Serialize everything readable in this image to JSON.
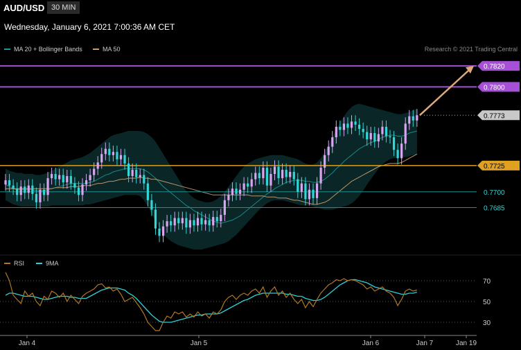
{
  "header": {
    "symbol": "AUD/USD",
    "timeframe": "30 MIN",
    "datetime": "Wednesday, January 6, 2021 7:00:36 AM CET",
    "credit": "Research © 2021 Trading Central"
  },
  "legend": {
    "main": [
      {
        "label": "MA 20 + Bollinger Bands",
        "color": "#1a9a9a"
      },
      {
        "label": "MA 50",
        "color": "#c8a070"
      }
    ],
    "rsi": [
      {
        "label": "RSI",
        "color": "#b07828"
      },
      {
        "label": "9MA",
        "color": "#2ed0d8"
      }
    ]
  },
  "colors": {
    "bull": "#d8a6f0",
    "bear": "#33d6d6",
    "resistance": "#a650d8",
    "support": "#1f8f8f",
    "pivot": "#e0a020",
    "arrow": "#e0a878",
    "band_fill": "#0a2626",
    "current_tag": "#c8c8c8"
  },
  "chart_data": [
    {
      "type": "candlestick",
      "ylim": [
        0.7645,
        0.783
      ],
      "x_ticks": [
        "Jan 4",
        "Jan 5",
        "Jan 6",
        "Jan 7",
        "Jan 19"
      ],
      "levels": [
        {
          "value": 0.782,
          "label": "0.7820",
          "kind": "resistance"
        },
        {
          "value": 0.78,
          "label": "0.7800",
          "kind": "resistance"
        },
        {
          "value": 0.7773,
          "label": "0.7773",
          "kind": "current"
        },
        {
          "value": 0.7725,
          "label": "0.7725",
          "kind": "pivot"
        },
        {
          "value": 0.77,
          "label": "0.7700",
          "kind": "support"
        },
        {
          "value": 0.7685,
          "label": "0.7685",
          "kind": "support"
        }
      ],
      "target_arrow": {
        "from": 0.7773,
        "to": 0.782
      },
      "candles": [
        [
          0.7707,
          0.7711
        ],
        [
          0.7711,
          0.7706
        ],
        [
          0.7706,
          0.7703
        ],
        [
          0.7703,
          0.7697
        ],
        [
          0.7697,
          0.7705
        ],
        [
          0.7705,
          0.7699
        ],
        [
          0.7699,
          0.7706
        ],
        [
          0.7706,
          0.7698
        ],
        [
          0.7698,
          0.769
        ],
        [
          0.769,
          0.7702
        ],
        [
          0.7702,
          0.7697
        ],
        [
          0.7697,
          0.7713
        ],
        [
          0.7713,
          0.7717
        ],
        [
          0.7717,
          0.7712
        ],
        [
          0.7712,
          0.7716
        ],
        [
          0.7716,
          0.7709
        ],
        [
          0.7709,
          0.7715
        ],
        [
          0.7715,
          0.7708
        ],
        [
          0.7708,
          0.7704
        ],
        [
          0.7704,
          0.7697
        ],
        [
          0.7697,
          0.7707
        ],
        [
          0.7707,
          0.7711
        ],
        [
          0.7711,
          0.7716
        ],
        [
          0.7716,
          0.7722
        ],
        [
          0.7722,
          0.7728
        ],
        [
          0.7728,
          0.7736
        ],
        [
          0.7736,
          0.7741
        ],
        [
          0.7741,
          0.7735
        ],
        [
          0.7735,
          0.7738
        ],
        [
          0.7738,
          0.7731
        ],
        [
          0.7731,
          0.7735
        ],
        [
          0.7735,
          0.7727
        ],
        [
          0.7727,
          0.7715
        ],
        [
          0.7715,
          0.7721
        ],
        [
          0.7721,
          0.7714
        ],
        [
          0.7714,
          0.7716
        ],
        [
          0.7716,
          0.7708
        ],
        [
          0.7708,
          0.7692
        ],
        [
          0.7692,
          0.7683
        ],
        [
          0.7683,
          0.7665
        ],
        [
          0.7665,
          0.7658
        ],
        [
          0.7658,
          0.7667
        ],
        [
          0.7667,
          0.7672
        ],
        [
          0.7672,
          0.7668
        ],
        [
          0.7668,
          0.7675
        ],
        [
          0.7675,
          0.767
        ],
        [
          0.767,
          0.7675
        ],
        [
          0.7675,
          0.7666
        ],
        [
          0.7666,
          0.7673
        ],
        [
          0.7673,
          0.7668
        ],
        [
          0.7668,
          0.7675
        ],
        [
          0.7675,
          0.7669
        ],
        [
          0.7669,
          0.7673
        ],
        [
          0.7673,
          0.7668
        ],
        [
          0.7668,
          0.7676
        ],
        [
          0.7676,
          0.7672
        ],
        [
          0.7672,
          0.7678
        ],
        [
          0.7678,
          0.7692
        ],
        [
          0.7692,
          0.7697
        ],
        [
          0.7697,
          0.7703
        ],
        [
          0.7703,
          0.7698
        ],
        [
          0.7698,
          0.7702
        ],
        [
          0.7702,
          0.7708
        ],
        [
          0.7708,
          0.7705
        ],
        [
          0.7705,
          0.7712
        ],
        [
          0.7712,
          0.7718
        ],
        [
          0.7718,
          0.7713
        ],
        [
          0.7713,
          0.7723
        ],
        [
          0.7723,
          0.7706
        ],
        [
          0.7706,
          0.7717
        ],
        [
          0.7717,
          0.7724
        ],
        [
          0.7724,
          0.7713
        ],
        [
          0.7713,
          0.7721
        ],
        [
          0.7721,
          0.7714
        ],
        [
          0.7714,
          0.7719
        ],
        [
          0.7719,
          0.7712
        ],
        [
          0.7712,
          0.77
        ],
        [
          0.77,
          0.7708
        ],
        [
          0.7708,
          0.7693
        ],
        [
          0.7693,
          0.7702
        ],
        [
          0.7702,
          0.7694
        ],
        [
          0.7694,
          0.7708
        ],
        [
          0.7708,
          0.7723
        ],
        [
          0.7723,
          0.7735
        ],
        [
          0.7735,
          0.7743
        ],
        [
          0.7743,
          0.7752
        ],
        [
          0.7752,
          0.7762
        ],
        [
          0.7762,
          0.7759
        ],
        [
          0.7759,
          0.7765
        ],
        [
          0.7765,
          0.7761
        ],
        [
          0.7761,
          0.7767
        ],
        [
          0.7767,
          0.7764
        ],
        [
          0.7764,
          0.776
        ],
        [
          0.776,
          0.7757
        ],
        [
          0.7757,
          0.775
        ],
        [
          0.775,
          0.7756
        ],
        [
          0.7756,
          0.7748
        ],
        [
          0.7748,
          0.7755
        ],
        [
          0.7755,
          0.7762
        ],
        [
          0.7762,
          0.7753
        ],
        [
          0.7753,
          0.7752
        ],
        [
          0.7752,
          0.774
        ],
        [
          0.774,
          0.7732
        ],
        [
          0.7732,
          0.7746
        ],
        [
          0.7746,
          0.7765
        ],
        [
          0.7765,
          0.7772
        ],
        [
          0.7772,
          0.7768
        ],
        [
          0.7768,
          0.7773
        ]
      ],
      "ma20": [
        0.7707,
        0.7705,
        0.7703,
        0.7702,
        0.7702,
        0.7702,
        0.7702,
        0.7702,
        0.7701,
        0.7701,
        0.7701,
        0.7702,
        0.7703,
        0.7704,
        0.7705,
        0.7706,
        0.7707,
        0.7708,
        0.7708,
        0.7708,
        0.7708,
        0.7708,
        0.7709,
        0.771,
        0.7712,
        0.7714,
        0.7716,
        0.7717,
        0.7719,
        0.772,
        0.7721,
        0.7722,
        0.7722,
        0.7722,
        0.7722,
        0.7722,
        0.7721,
        0.7719,
        0.7716,
        0.7713,
        0.7709,
        0.7705,
        0.7702,
        0.7699,
        0.7696,
        0.7693,
        0.769,
        0.7687,
        0.7685,
        0.7682,
        0.768,
        0.7678,
        0.7676,
        0.7674,
        0.7672,
        0.7671,
        0.767,
        0.7671,
        0.7672,
        0.7673,
        0.7675,
        0.7677,
        0.768,
        0.7683,
        0.7686,
        0.7689,
        0.7692,
        0.7695,
        0.7698,
        0.77,
        0.7703,
        0.7705,
        0.7707,
        0.7709,
        0.771,
        0.7711,
        0.7711,
        0.7711,
        0.771,
        0.771,
        0.7709,
        0.7709,
        0.771,
        0.7712,
        0.7715,
        0.7718,
        0.7722,
        0.7725,
        0.7729,
        0.7732,
        0.7735,
        0.7738,
        0.7741,
        0.7743,
        0.7745,
        0.7747,
        0.7748,
        0.775,
        0.7752,
        0.7753,
        0.7754,
        0.7754,
        0.7753,
        0.7753,
        0.7754,
        0.7756,
        0.7757,
        0.7758
      ],
      "ma50": [
        0.7703,
        0.7703,
        0.7703,
        0.7703,
        0.7703,
        0.7703,
        0.7703,
        0.7703,
        0.7703,
        0.7703,
        0.7703,
        0.7703,
        0.7703,
        0.7704,
        0.7704,
        0.7704,
        0.7704,
        0.7705,
        0.7705,
        0.7705,
        0.7706,
        0.7706,
        0.7706,
        0.7707,
        0.7708,
        0.7708,
        0.7709,
        0.771,
        0.771,
        0.7711,
        0.7712,
        0.7712,
        0.7713,
        0.7713,
        0.7713,
        0.7714,
        0.7713,
        0.7713,
        0.7712,
        0.7712,
        0.7711,
        0.771,
        0.7709,
        0.7708,
        0.7707,
        0.7706,
        0.7705,
        0.7704,
        0.7703,
        0.7702,
        0.7701,
        0.77,
        0.7699,
        0.7698,
        0.7697,
        0.7697,
        0.7697,
        0.7697,
        0.7697,
        0.7697,
        0.7697,
        0.7697,
        0.7697,
        0.7697,
        0.7696,
        0.7696,
        0.7696,
        0.7696,
        0.7695,
        0.7695,
        0.7695,
        0.7694,
        0.7694,
        0.7694,
        0.7693,
        0.7692,
        0.7692,
        0.7691,
        0.769,
        0.7689,
        0.7688,
        0.7688,
        0.7689,
        0.769,
        0.7692,
        0.7695,
        0.7698,
        0.7701,
        0.7704,
        0.7707,
        0.771,
        0.7712,
        0.7714,
        0.7716,
        0.7718,
        0.772,
        0.7722,
        0.7724,
        0.7725,
        0.7726,
        0.7727,
        0.7727,
        0.7727,
        0.7728,
        0.773,
        0.7732,
        0.7734,
        0.7736
      ],
      "bb_upper": [
        0.7722,
        0.772,
        0.7719,
        0.7718,
        0.7718,
        0.7717,
        0.7717,
        0.7717,
        0.7716,
        0.7716,
        0.7717,
        0.7718,
        0.772,
        0.7722,
        0.7724,
        0.7726,
        0.7728,
        0.773,
        0.7731,
        0.7732,
        0.7733,
        0.7735,
        0.7737,
        0.774,
        0.7743,
        0.7746,
        0.7749,
        0.7752,
        0.7754,
        0.7755,
        0.7756,
        0.7757,
        0.7758,
        0.7758,
        0.7758,
        0.7758,
        0.7757,
        0.7755,
        0.7752,
        0.7748,
        0.7742,
        0.7736,
        0.773,
        0.7724,
        0.7718,
        0.7712,
        0.7706,
        0.7701,
        0.7697,
        0.7694,
        0.7692,
        0.7691,
        0.769,
        0.769,
        0.7691,
        0.7693,
        0.7696,
        0.77,
        0.7705,
        0.771,
        0.7715,
        0.772,
        0.7724,
        0.7727,
        0.7729,
        0.7731,
        0.7732,
        0.7733,
        0.7734,
        0.7735,
        0.7735,
        0.7735,
        0.7735,
        0.7734,
        0.7733,
        0.7732,
        0.7731,
        0.7729,
        0.7727,
        0.7726,
        0.7726,
        0.7728,
        0.7732,
        0.7738,
        0.7745,
        0.7752,
        0.7759,
        0.7766,
        0.7772,
        0.7777,
        0.7781,
        0.7783,
        0.7784,
        0.7783,
        0.7782,
        0.7781,
        0.778,
        0.7779,
        0.7778,
        0.7777,
        0.7776,
        0.7775,
        0.7774,
        0.7774,
        0.7775,
        0.7776,
        0.7778,
        0.7779
      ],
      "bb_lower": [
        0.7692,
        0.769,
        0.7688,
        0.7687,
        0.7686,
        0.7686,
        0.7686,
        0.7686,
        0.7686,
        0.7686,
        0.7686,
        0.7686,
        0.7687,
        0.7687,
        0.7687,
        0.7687,
        0.7687,
        0.7687,
        0.7687,
        0.7687,
        0.7687,
        0.7688,
        0.7688,
        0.7689,
        0.769,
        0.7691,
        0.7692,
        0.7693,
        0.7694,
        0.7695,
        0.7696,
        0.7697,
        0.7697,
        0.7697,
        0.7697,
        0.7696,
        0.7692,
        0.7686,
        0.7679,
        0.7672,
        0.7665,
        0.766,
        0.7656,
        0.7653,
        0.7651,
        0.7649,
        0.7648,
        0.7647,
        0.7646,
        0.7645,
        0.7645,
        0.7645,
        0.7646,
        0.7647,
        0.7648,
        0.7649,
        0.765,
        0.7651,
        0.7653,
        0.7656,
        0.7659,
        0.7663,
        0.7667,
        0.7671,
        0.7675,
        0.7679,
        0.7683,
        0.7686,
        0.7689,
        0.7691,
        0.7692,
        0.7692,
        0.7692,
        0.7691,
        0.769,
        0.7689,
        0.7688,
        0.7687,
        0.7687,
        0.7687,
        0.7686,
        0.7685,
        0.7684,
        0.7683,
        0.7683,
        0.7683,
        0.7684,
        0.7685,
        0.7686,
        0.7687,
        0.7689,
        0.7692,
        0.7696,
        0.7701,
        0.7707,
        0.7712,
        0.7717,
        0.7722,
        0.7726,
        0.7729,
        0.7731,
        0.7732,
        0.7732,
        0.7733,
        0.7733,
        0.7734,
        0.7735,
        0.7736
      ]
    },
    {
      "type": "line",
      "name": "RSI",
      "ylim": [
        20,
        80
      ],
      "y_ticks": [
        70,
        50,
        30
      ],
      "rsi": [
        78,
        70,
        56,
        52,
        48,
        60,
        55,
        58,
        50,
        46,
        55,
        52,
        60,
        58,
        54,
        58,
        50,
        56,
        52,
        48,
        55,
        58,
        60,
        62,
        66,
        67,
        63,
        64,
        60,
        62,
        57,
        50,
        52,
        54,
        49,
        44,
        38,
        30,
        26,
        22,
        22,
        30,
        36,
        34,
        40,
        38,
        40,
        35,
        38,
        35,
        40,
        36,
        38,
        34,
        40,
        38,
        42,
        50,
        54,
        56,
        52,
        56,
        58,
        56,
        60,
        62,
        58,
        64,
        54,
        60,
        64,
        56,
        60,
        54,
        58,
        52,
        48,
        52,
        44,
        50,
        45,
        52,
        58,
        62,
        66,
        68,
        71,
        70,
        72,
        70,
        71,
        70,
        68,
        66,
        62,
        64,
        60,
        62,
        64,
        60,
        58,
        54,
        46,
        52,
        60,
        62,
        60,
        61
      ],
      "ma9": [
        56,
        58,
        58,
        57,
        56,
        55,
        55,
        55,
        54,
        53,
        52,
        52,
        53,
        54,
        55,
        55,
        55,
        54,
        54,
        53,
        53,
        53,
        55,
        57,
        59,
        61,
        62,
        63,
        63,
        63,
        62,
        61,
        58,
        56,
        53,
        49,
        45,
        41,
        37,
        34,
        31,
        30,
        30,
        30,
        31,
        32,
        33,
        34,
        35,
        36,
        37,
        37,
        38,
        38,
        38,
        38,
        39,
        41,
        43,
        45,
        47,
        49,
        51,
        52,
        54,
        56,
        57,
        58,
        58,
        58,
        58,
        58,
        58,
        57,
        57,
        56,
        55,
        55,
        53,
        52,
        51,
        51,
        52,
        54,
        57,
        60,
        63,
        66,
        68,
        70,
        71,
        71,
        70,
        69,
        68,
        66,
        64,
        63,
        62,
        61,
        60,
        59,
        58,
        57,
        57,
        58,
        58,
        59
      ]
    }
  ]
}
